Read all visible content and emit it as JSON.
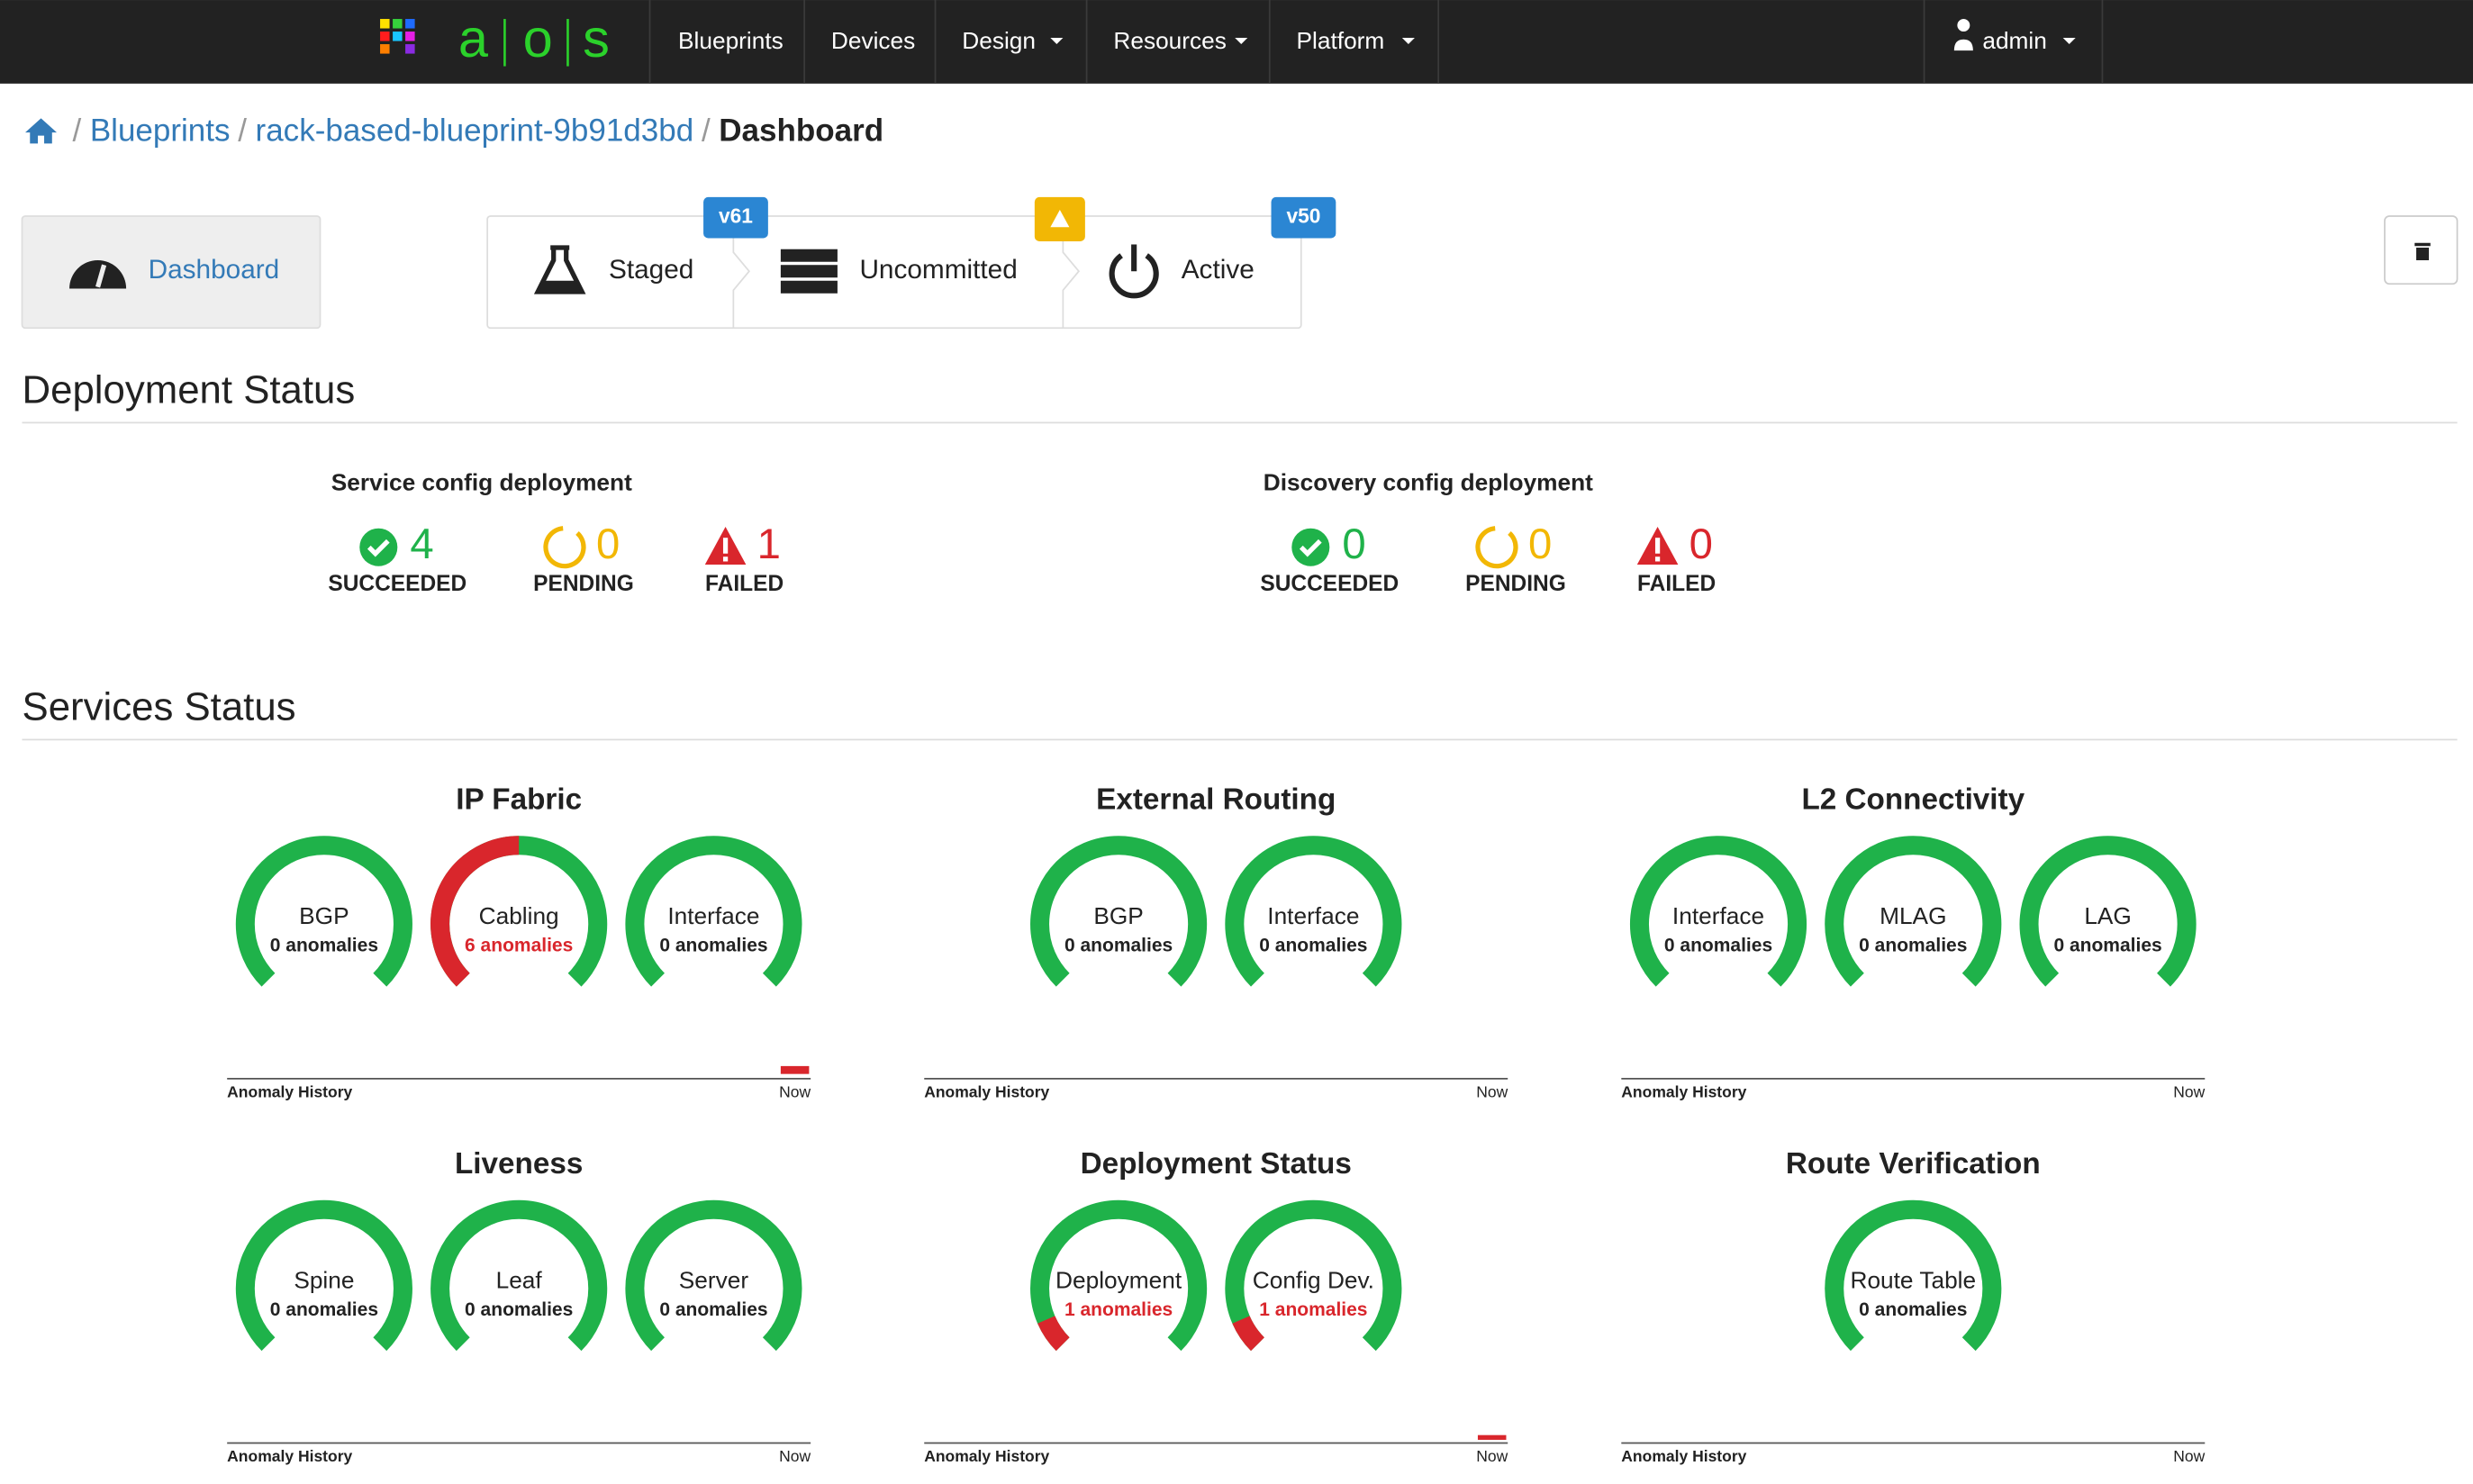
{
  "nav": {
    "logo": [
      "a",
      "o",
      "s"
    ],
    "items": [
      "Blueprints",
      "Devices",
      "Design",
      "Resources",
      "Platform"
    ],
    "user": "admin"
  },
  "breadcrumb": [
    "Blueprints",
    "rack-based-blueprint-9b91d3bd",
    "Dashboard"
  ],
  "tabs": {
    "dashboard": "Dashboard",
    "stages": [
      {
        "label": "Staged",
        "badge": "v61"
      },
      {
        "label": "Uncommitted"
      },
      {
        "label": "Active",
        "badge": "v50"
      }
    ]
  },
  "deployment_status": {
    "title": "Deployment Status",
    "groups": [
      {
        "title": "Service config deployment",
        "items": [
          {
            "value": 4,
            "label": "SUCCEEDED"
          },
          {
            "value": 0,
            "label": "PENDING"
          },
          {
            "value": 1,
            "label": "FAILED"
          }
        ]
      },
      {
        "title": "Discovery config deployment",
        "items": [
          {
            "value": 0,
            "label": "SUCCEEDED"
          },
          {
            "value": 0,
            "label": "PENDING"
          },
          {
            "value": 0,
            "label": "FAILED"
          }
        ]
      }
    ]
  },
  "services_status": {
    "title": "Services Status",
    "history_label": "Anomaly History",
    "now_label": "Now",
    "groups": [
      {
        "title": "IP Fabric",
        "gauges": [
          {
            "name": "BGP",
            "anomalies": "0 anomalies"
          },
          {
            "name": "Cabling",
            "anomalies": "6 anomalies"
          },
          {
            "name": "Interface",
            "anomalies": "0 anomalies"
          }
        ]
      },
      {
        "title": "External Routing",
        "gauges": [
          {
            "name": "BGP",
            "anomalies": "0 anomalies"
          },
          {
            "name": "Interface",
            "anomalies": "0 anomalies"
          }
        ]
      },
      {
        "title": "L2 Connectivity",
        "gauges": [
          {
            "name": "Interface",
            "anomalies": "0 anomalies"
          },
          {
            "name": "MLAG",
            "anomalies": "0 anomalies"
          },
          {
            "name": "LAG",
            "anomalies": "0 anomalies"
          }
        ]
      },
      {
        "title": "Liveness",
        "gauges": [
          {
            "name": "Spine",
            "anomalies": "0 anomalies"
          },
          {
            "name": "Leaf",
            "anomalies": "0 anomalies"
          },
          {
            "name": "Server",
            "anomalies": "0 anomalies"
          }
        ]
      },
      {
        "title": "Deployment Status",
        "gauges": [
          {
            "name": "Deployment",
            "anomalies": "1 anomalies"
          },
          {
            "name": "Config Dev.",
            "anomalies": "1 anomalies"
          }
        ]
      },
      {
        "title": "Route Verification",
        "gauges": [
          {
            "name": "Route Table",
            "anomalies": "0 anomalies"
          }
        ]
      }
    ]
  }
}
